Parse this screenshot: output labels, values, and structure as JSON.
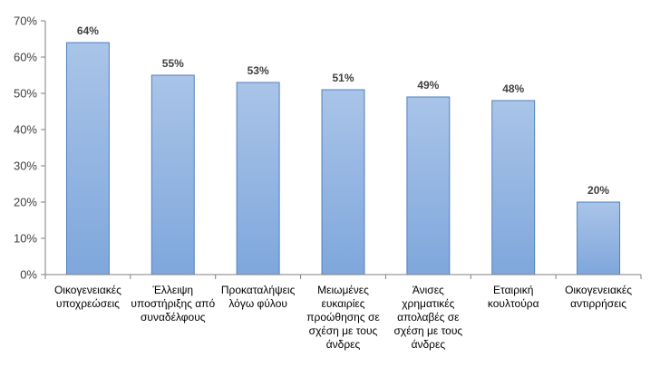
{
  "chart_data": {
    "type": "bar",
    "title": "",
    "xlabel": "",
    "ylabel": "",
    "categories": [
      [
        "Οικογενειακές",
        "υποχρεώσεις"
      ],
      [
        "Έλλειψη",
        "υποστήριξης από",
        "συναδέλφους"
      ],
      [
        "Προκαταλήψεις",
        "λόγω φύλου"
      ],
      [
        "Μειωμένες",
        "ευκαιρίες",
        "προώθησης σε",
        "σχέση με τους",
        "άνδρες"
      ],
      [
        "Άνισες",
        "χρηματικές",
        "απολαβές σε",
        "σχέση με τους",
        "άνδρες"
      ],
      [
        "Εταιρική",
        "κουλτούρα"
      ],
      [
        "Οικογενειακές",
        "αντιρρήσεις"
      ]
    ],
    "values": [
      64,
      55,
      53,
      51,
      49,
      48,
      20
    ],
    "data_labels": [
      "64%",
      "55%",
      "53%",
      "51%",
      "49%",
      "48%",
      "20%"
    ],
    "ylim": [
      0,
      70
    ],
    "yticks": [
      0,
      10,
      20,
      30,
      40,
      50,
      60,
      70
    ],
    "ytick_labels": [
      "0%",
      "10%",
      "20%",
      "30%",
      "40%",
      "50%",
      "60%",
      "70%"
    ],
    "grid": false,
    "legend": "none",
    "colors": {
      "bar_top": "#A9C4E8",
      "bar_bottom": "#7FA7DC",
      "bar_border": "#4F81BD",
      "axis": "#7F7F7F"
    }
  }
}
